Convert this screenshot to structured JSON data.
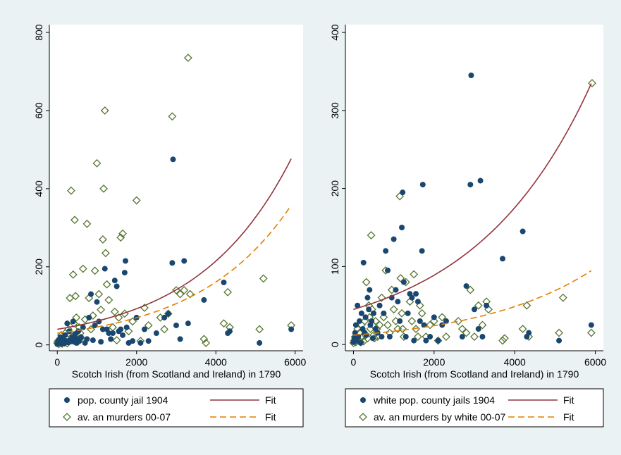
{
  "colors": {
    "background": "#eaf2f3",
    "plot_area": "#ffffff",
    "series_dots": "#1a476f",
    "series_diamonds": "#55752f",
    "fit_solid": "#90353b",
    "fit_dashed": "#e37e00"
  },
  "chart_data": [
    {
      "type": "scatter",
      "panel": "left",
      "title": "",
      "xlabel": "Scotch Irish (from Scotland and Ireland) in 1790",
      "ylabel": "",
      "xlim": [
        -200,
        6200
      ],
      "ylim": [
        -15,
        820
      ],
      "x_ticks": [
        0,
        2000,
        4000,
        6000
      ],
      "y_ticks": [
        0,
        200,
        400,
        600,
        800
      ],
      "grid": false,
      "legend_position": "bottom",
      "legend": {
        "dots": "pop. county jail 1904",
        "fit_solid": "Fit",
        "diamonds": "av. an murders 00-07",
        "fit_dashed": "Fit"
      },
      "fit_solid": {
        "a": 40,
        "b": 0.00042
      },
      "fit_dashed": {
        "a": 30,
        "b": 0.00042
      },
      "dots": [
        [
          0,
          2
        ],
        [
          10,
          5
        ],
        [
          20,
          8
        ],
        [
          40,
          12
        ],
        [
          60,
          5
        ],
        [
          80,
          20
        ],
        [
          100,
          3
        ],
        [
          120,
          8
        ],
        [
          150,
          15
        ],
        [
          180,
          4
        ],
        [
          200,
          25
        ],
        [
          230,
          10
        ],
        [
          250,
          55
        ],
        [
          280,
          6
        ],
        [
          300,
          35
        ],
        [
          320,
          12
        ],
        [
          350,
          9
        ],
        [
          380,
          20
        ],
        [
          400,
          60
        ],
        [
          420,
          8
        ],
        [
          450,
          28
        ],
        [
          480,
          5
        ],
        [
          500,
          15
        ],
        [
          530,
          35
        ],
        [
          560,
          10
        ],
        [
          600,
          20
        ],
        [
          650,
          45
        ],
        [
          700,
          5
        ],
        [
          750,
          15
        ],
        [
          800,
          70
        ],
        [
          850,
          130
        ],
        [
          900,
          12
        ],
        [
          950,
          50
        ],
        [
          1000,
          110
        ],
        [
          1050,
          60
        ],
        [
          1100,
          8
        ],
        [
          1150,
          40
        ],
        [
          1200,
          195
        ],
        [
          1250,
          40
        ],
        [
          1300,
          30
        ],
        [
          1350,
          15
        ],
        [
          1400,
          30
        ],
        [
          1450,
          165
        ],
        [
          1500,
          150
        ],
        [
          1550,
          35
        ],
        [
          1600,
          40
        ],
        [
          1650,
          25
        ],
        [
          1700,
          185
        ],
        [
          1720,
          215
        ],
        [
          1750,
          45
        ],
        [
          1800,
          5
        ],
        [
          1900,
          10
        ],
        [
          2000,
          70
        ],
        [
          2100,
          5
        ],
        [
          2200,
          40
        ],
        [
          2300,
          10
        ],
        [
          2500,
          30
        ],
        [
          2700,
          70
        ],
        [
          2800,
          80
        ],
        [
          2900,
          210
        ],
        [
          2920,
          475
        ],
        [
          3000,
          50
        ],
        [
          3100,
          15
        ],
        [
          3200,
          215
        ],
        [
          3300,
          55
        ],
        [
          3700,
          115
        ],
        [
          4200,
          160
        ],
        [
          4300,
          30
        ],
        [
          4350,
          35
        ],
        [
          5100,
          5
        ],
        [
          5900,
          40
        ]
      ],
      "diamonds": [
        [
          0,
          5
        ],
        [
          20,
          10
        ],
        [
          40,
          2
        ],
        [
          60,
          15
        ],
        [
          80,
          8
        ],
        [
          100,
          25
        ],
        [
          120,
          3
        ],
        [
          150,
          12
        ],
        [
          180,
          6
        ],
        [
          200,
          30
        ],
        [
          220,
          18
        ],
        [
          250,
          4
        ],
        [
          280,
          40
        ],
        [
          300,
          10
        ],
        [
          320,
          120
        ],
        [
          350,
          395
        ],
        [
          380,
          22
        ],
        [
          400,
          180
        ],
        [
          420,
          55
        ],
        [
          440,
          320
        ],
        [
          460,
          125
        ],
        [
          480,
          70
        ],
        [
          500,
          15
        ],
        [
          520,
          8
        ],
        [
          550,
          45
        ],
        [
          580,
          30
        ],
        [
          600,
          18
        ],
        [
          650,
          195
        ],
        [
          700,
          65
        ],
        [
          750,
          310
        ],
        [
          800,
          120
        ],
        [
          850,
          40
        ],
        [
          900,
          75
        ],
        [
          950,
          190
        ],
        [
          1000,
          465
        ],
        [
          1050,
          130
        ],
        [
          1100,
          90
        ],
        [
          1150,
          270
        ],
        [
          1170,
          400
        ],
        [
          1200,
          600
        ],
        [
          1220,
          235
        ],
        [
          1250,
          155
        ],
        [
          1300,
          115
        ],
        [
          1400,
          45
        ],
        [
          1450,
          85
        ],
        [
          1500,
          12
        ],
        [
          1550,
          70
        ],
        [
          1600,
          275
        ],
        [
          1650,
          285
        ],
        [
          1700,
          80
        ],
        [
          1800,
          35
        ],
        [
          1900,
          60
        ],
        [
          2000,
          370
        ],
        [
          2100,
          10
        ],
        [
          2200,
          95
        ],
        [
          2300,
          50
        ],
        [
          2600,
          70
        ],
        [
          2700,
          40
        ],
        [
          2800,
          80
        ],
        [
          2900,
          585
        ],
        [
          3000,
          140
        ],
        [
          3100,
          130
        ],
        [
          3200,
          140
        ],
        [
          3300,
          735
        ],
        [
          3350,
          130
        ],
        [
          3700,
          15
        ],
        [
          3750,
          5
        ],
        [
          4200,
          55
        ],
        [
          4300,
          135
        ],
        [
          4350,
          45
        ],
        [
          5100,
          40
        ],
        [
          5200,
          170
        ],
        [
          5900,
          50
        ]
      ]
    },
    {
      "type": "scatter",
      "panel": "right",
      "title": "",
      "xlabel": "Scotch Irish (from Scotland and Ireland) in 1790",
      "ylabel": "",
      "xlim": [
        -200,
        6200
      ],
      "ylim": [
        -8,
        410
      ],
      "x_ticks": [
        0,
        2000,
        4000,
        6000
      ],
      "y_ticks": [
        0,
        100,
        200,
        300,
        400
      ],
      "grid": false,
      "legend_position": "bottom",
      "legend": {
        "dots": "white pop. county jails 1904",
        "fit_solid": "Fit",
        "diamonds": "av. an murders by white 00-07",
        "fit_dashed": "Fit"
      },
      "fit_solid": {
        "a": 45,
        "b": 0.00034
      },
      "fit_dashed": {
        "a": 12,
        "b": 0.00035
      },
      "dots": [
        [
          0,
          3
        ],
        [
          20,
          8
        ],
        [
          40,
          15
        ],
        [
          60,
          25
        ],
        [
          80,
          5
        ],
        [
          100,
          50
        ],
        [
          120,
          10
        ],
        [
          150,
          30
        ],
        [
          180,
          2
        ],
        [
          200,
          40
        ],
        [
          230,
          20
        ],
        [
          250,
          105
        ],
        [
          280,
          15
        ],
        [
          300,
          35
        ],
        [
          320,
          12
        ],
        [
          350,
          60
        ],
        [
          380,
          45
        ],
        [
          400,
          70
        ],
        [
          420,
          25
        ],
        [
          450,
          30
        ],
        [
          480,
          8
        ],
        [
          500,
          40
        ],
        [
          550,
          20
        ],
        [
          600,
          15
        ],
        [
          650,
          50
        ],
        [
          700,
          10
        ],
        [
          750,
          40
        ],
        [
          800,
          120
        ],
        [
          850,
          95
        ],
        [
          900,
          10
        ],
        [
          950,
          60
        ],
        [
          1000,
          135
        ],
        [
          1050,
          70
        ],
        [
          1100,
          55
        ],
        [
          1150,
          30
        ],
        [
          1200,
          150
        ],
        [
          1220,
          195
        ],
        [
          1250,
          80
        ],
        [
          1300,
          10
        ],
        [
          1350,
          40
        ],
        [
          1400,
          65
        ],
        [
          1450,
          60
        ],
        [
          1500,
          5
        ],
        [
          1550,
          65
        ],
        [
          1600,
          55
        ],
        [
          1650,
          30
        ],
        [
          1700,
          120
        ],
        [
          1720,
          205
        ],
        [
          1750,
          25
        ],
        [
          1800,
          5
        ],
        [
          1900,
          10
        ],
        [
          2000,
          35
        ],
        [
          2100,
          5
        ],
        [
          2200,
          25
        ],
        [
          2300,
          30
        ],
        [
          2700,
          10
        ],
        [
          2800,
          75
        ],
        [
          2900,
          205
        ],
        [
          2920,
          345
        ],
        [
          3000,
          45
        ],
        [
          3100,
          20
        ],
        [
          3150,
          210
        ],
        [
          3200,
          10
        ],
        [
          3300,
          50
        ],
        [
          3700,
          110
        ],
        [
          4200,
          145
        ],
        [
          4300,
          10
        ],
        [
          4350,
          15
        ],
        [
          5100,
          5
        ],
        [
          5900,
          25
        ]
      ],
      "diamonds": [
        [
          0,
          2
        ],
        [
          20,
          5
        ],
        [
          40,
          10
        ],
        [
          60,
          3
        ],
        [
          80,
          8
        ],
        [
          100,
          20
        ],
        [
          120,
          5
        ],
        [
          150,
          15
        ],
        [
          180,
          3
        ],
        [
          200,
          25
        ],
        [
          220,
          10
        ],
        [
          250,
          4
        ],
        [
          280,
          30
        ],
        [
          300,
          12
        ],
        [
          320,
          80
        ],
        [
          350,
          8
        ],
        [
          380,
          50
        ],
        [
          400,
          35
        ],
        [
          420,
          20
        ],
        [
          440,
          140
        ],
        [
          460,
          45
        ],
        [
          480,
          25
        ],
        [
          500,
          12
        ],
        [
          520,
          8
        ],
        [
          550,
          30
        ],
        [
          580,
          20
        ],
        [
          600,
          10
        ],
        [
          650,
          25
        ],
        [
          700,
          60
        ],
        [
          750,
          35
        ],
        [
          800,
          95
        ],
        [
          850,
          25
        ],
        [
          900,
          15
        ],
        [
          950,
          70
        ],
        [
          1000,
          45
        ],
        [
          1050,
          30
        ],
        [
          1100,
          20
        ],
        [
          1150,
          190
        ],
        [
          1170,
          85
        ],
        [
          1200,
          40
        ],
        [
          1220,
          20
        ],
        [
          1250,
          10
        ],
        [
          1300,
          80
        ],
        [
          1400,
          55
        ],
        [
          1450,
          30
        ],
        [
          1500,
          90
        ],
        [
          1550,
          20
        ],
        [
          1600,
          10
        ],
        [
          1650,
          50
        ],
        [
          1700,
          40
        ],
        [
          1800,
          10
        ],
        [
          1900,
          25
        ],
        [
          2000,
          30
        ],
        [
          2100,
          5
        ],
        [
          2200,
          35
        ],
        [
          2300,
          10
        ],
        [
          2600,
          30
        ],
        [
          2700,
          20
        ],
        [
          2800,
          15
        ],
        [
          2900,
          70
        ],
        [
          3000,
          10
        ],
        [
          3100,
          50
        ],
        [
          3200,
          25
        ],
        [
          3300,
          55
        ],
        [
          3350,
          45
        ],
        [
          3700,
          5
        ],
        [
          3750,
          8
        ],
        [
          4200,
          20
        ],
        [
          4300,
          50
        ],
        [
          4350,
          10
        ],
        [
          5100,
          15
        ],
        [
          5200,
          60
        ],
        [
          5900,
          15
        ],
        [
          5920,
          335
        ]
      ]
    }
  ]
}
